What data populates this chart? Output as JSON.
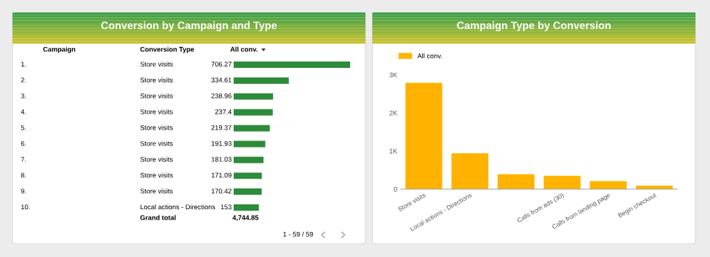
{
  "chart_data": [
    {
      "type": "bar",
      "orientation": "horizontal",
      "title": "Conversion by Campaign and Type",
      "color": "#2e8b3a",
      "data_labels": true,
      "categories": [
        "Store visits",
        "Store visits",
        "Store visits",
        "Store visits",
        "Store visits",
        "Store visits",
        "Store visits",
        "Store visits",
        "Store visits",
        "Local actions - Directions"
      ],
      "values": [
        706.27,
        334.61,
        238.96,
        237.4,
        219.37,
        191.93,
        181.03,
        171.09,
        170.42,
        153
      ],
      "annotations": [
        "1.",
        "2.",
        "3.",
        "4.",
        "5.",
        "6.",
        "7.",
        "8.",
        "9.",
        "10.",
        "Campaign",
        "Conversion Type",
        "All conv.",
        "Grand total",
        "4,744.85",
        "1 - 59 / 59"
      ]
    },
    {
      "type": "bar",
      "title": "Campaign Type by Conversion",
      "categories": [
        "Store visits",
        "Local actions - Directions",
        null,
        "Calls from ads (30)",
        "Calls from landing page",
        "Begin checkout"
      ],
      "series": [
        {
          "name": "All conv.",
          "color": "#ffb300",
          "values": [
            2790,
            940,
            390,
            350,
            210,
            90
          ]
        }
      ],
      "ylim": [
        0,
        3000
      ],
      "yticks": [
        0,
        {
          "value": 1000,
          "label": "1K"
        },
        {
          "value": 2000,
          "label": "2K"
        },
        {
          "value": 3000,
          "label": "3K"
        }
      ],
      "grid": false,
      "legend": "top left"
    }
  ]
}
